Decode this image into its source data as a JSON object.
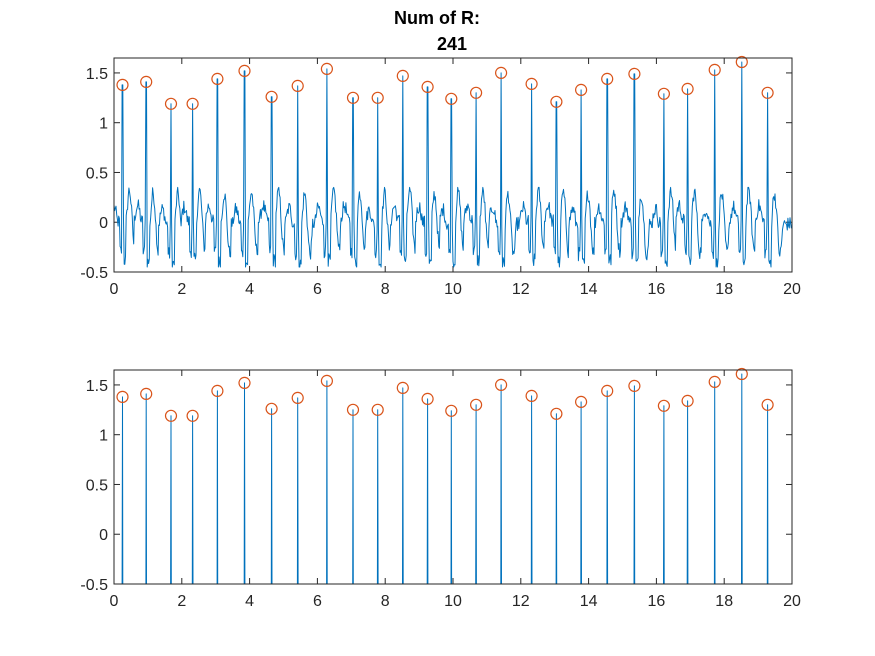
{
  "figure": {
    "title_line1": "Num of R:",
    "title_line2": "241"
  },
  "colors": {
    "signal": "#0072BD",
    "markers": "#D95319",
    "axes": "#262626",
    "background": "#ffffff"
  },
  "chart_data": [
    {
      "type": "line",
      "title": "Num of R:\n241",
      "xlabel": "",
      "ylabel": "",
      "xlim": [
        0,
        20
      ],
      "ylim": [
        -0.5,
        1.65
      ],
      "xticks": [
        0,
        2,
        4,
        6,
        8,
        10,
        12,
        14,
        16,
        18,
        20
      ],
      "xtick_labels": [
        "0",
        "2",
        "4",
        "6",
        "8",
        "10",
        "12",
        "14",
        "16",
        "18",
        "20"
      ],
      "yticks": [
        -0.5,
        0,
        0.5,
        1,
        1.5
      ],
      "ytick_labels": [
        "-0.5",
        "0",
        "0.5",
        "1",
        "1.5"
      ],
      "grid": false,
      "legend": "none",
      "series": [
        {
          "kind": "ecg_signal",
          "baseline_oscillation": [
            -0.45,
            0.35
          ]
        },
        {
          "kind": "r_peak_markers",
          "marker": "open-circle",
          "x": [
            0.25,
            0.95,
            1.68,
            2.32,
            3.05,
            3.85,
            4.65,
            5.42,
            6.28,
            7.05,
            7.78,
            8.52,
            9.25,
            9.95,
            10.68,
            11.42,
            12.32,
            13.05,
            13.78,
            14.55,
            15.35,
            16.22,
            16.92,
            17.72,
            18.52,
            19.28
          ],
          "y": [
            1.38,
            1.41,
            1.19,
            1.19,
            1.44,
            1.52,
            1.26,
            1.37,
            1.54,
            1.25,
            1.25,
            1.47,
            1.36,
            1.24,
            1.3,
            1.5,
            1.39,
            1.21,
            1.33,
            1.44,
            1.49,
            1.29,
            1.34,
            1.53,
            1.61,
            1.3
          ]
        }
      ]
    },
    {
      "type": "line",
      "title": "",
      "xlabel": "",
      "ylabel": "",
      "xlim": [
        0,
        20
      ],
      "ylim": [
        -0.5,
        1.65
      ],
      "xticks": [
        0,
        2,
        4,
        6,
        8,
        10,
        12,
        14,
        16,
        18,
        20
      ],
      "xtick_labels": [
        "0",
        "2",
        "4",
        "6",
        "8",
        "10",
        "12",
        "14",
        "16",
        "18",
        "20"
      ],
      "yticks": [
        -0.5,
        0,
        0.5,
        1,
        1.5
      ],
      "ytick_labels": [
        "-0.5",
        "0",
        "0.5",
        "1",
        "1.5"
      ],
      "grid": false,
      "legend": "none",
      "series": [
        {
          "kind": "impulse_signal",
          "baseline": -0.5
        },
        {
          "kind": "r_peak_markers",
          "marker": "open-circle",
          "x": [
            0.25,
            0.95,
            1.68,
            2.32,
            3.05,
            3.85,
            4.65,
            5.42,
            6.28,
            7.05,
            7.78,
            8.52,
            9.25,
            9.95,
            10.68,
            11.42,
            12.32,
            13.05,
            13.78,
            14.55,
            15.35,
            16.22,
            16.92,
            17.72,
            18.52,
            19.28
          ],
          "y": [
            1.38,
            1.41,
            1.19,
            1.19,
            1.44,
            1.52,
            1.26,
            1.37,
            1.54,
            1.25,
            1.25,
            1.47,
            1.36,
            1.24,
            1.3,
            1.5,
            1.39,
            1.21,
            1.33,
            1.44,
            1.49,
            1.29,
            1.34,
            1.53,
            1.61,
            1.3
          ]
        }
      ]
    }
  ]
}
